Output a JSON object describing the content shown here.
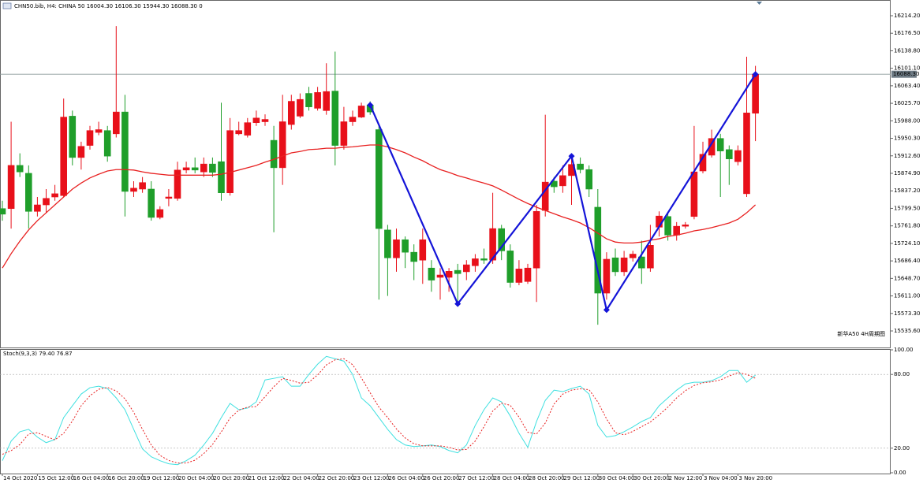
{
  "chart_data": [
    {
      "type": "candlestick",
      "title": "CHN50.bib, H4: CHINA 50 16004.30 16106.30 15944.30 16088.30 0",
      "annotation": "新华A50 4H周期图",
      "categories": [
        "14 Oct 2020",
        null,
        null,
        null,
        "15 Oct 12:00",
        null,
        null,
        null,
        "16 Oct 04:00",
        null,
        null,
        null,
        "16 Oct 20:00",
        null,
        null,
        null,
        "19 Oct 12:00",
        null,
        null,
        null,
        "20 Oct 04:00",
        null,
        null,
        null,
        "20 Oct 20:00",
        null,
        null,
        null,
        "21 Oct 12:00",
        null,
        null,
        null,
        "22 Oct 04:00",
        null,
        null,
        null,
        "22 Oct 20:00",
        null,
        null,
        null,
        "23 Oct 12:00",
        null,
        null,
        null,
        "26 Oct 04:00",
        null,
        null,
        null,
        "26 Oct 20:00",
        null,
        null,
        null,
        "27 Oct 12:00",
        null,
        null,
        null,
        "28 Oct 04:00",
        null,
        null,
        null,
        "28 Oct 20:00",
        null,
        null,
        null,
        "29 Oct 12:00",
        null,
        null,
        null,
        "30 Oct 04:00",
        null,
        null,
        null,
        "30 Oct 20:00",
        null,
        null,
        null,
        "2 Nov 12:00",
        null,
        null,
        null,
        "3 Nov 04:00",
        null,
        null,
        null,
        "3 Nov 20:00",
        null,
        null
      ],
      "open": [
        15799,
        15799,
        15892,
        15875,
        15793,
        15807,
        15824,
        15827,
        15998,
        15909,
        15935,
        15963,
        15967,
        15960,
        16007,
        15836,
        15841,
        15841,
        15780,
        15821,
        15821,
        15882,
        15887,
        15878,
        15895,
        15900,
        15833,
        15960,
        15957,
        15984,
        15986,
        15946,
        15887,
        15980,
        15998,
        16047,
        16015,
        16010,
        16052,
        15935,
        15986,
        15996,
        16022,
        15969,
        15753,
        15693,
        15732,
        15705,
        15688,
        15671,
        15651,
        15651,
        15666,
        15663,
        15676,
        15691,
        15688,
        15756,
        15708,
        15640,
        15642,
        15671,
        15795,
        15858,
        15848,
        15870,
        15895,
        15883,
        15802,
        15617,
        15693,
        15663,
        15693,
        15695,
        15671,
        15759,
        15782,
        15742,
        15761,
        15782,
        15880,
        15914,
        15950,
        15926,
        15900,
        15831,
        16004.3
      ],
      "high": [
        15816,
        15986,
        15918,
        15892,
        15824,
        15841,
        15850,
        16036,
        16010,
        15943,
        15977,
        15986,
        15977,
        16192,
        16044,
        15858,
        15867,
        15858,
        15804,
        15841,
        15900,
        15900,
        15909,
        15909,
        15909,
        16027,
        15994,
        15986,
        15994,
        16010,
        16002,
        15977,
        16044,
        16044,
        16047,
        16061,
        16061,
        16112,
        16137,
        16018,
        16010,
        16027,
        16030,
        15977,
        15764,
        15756,
        15739,
        15722,
        15756,
        15688,
        15671,
        15671,
        15680,
        15688,
        15701,
        15713,
        15833,
        15764,
        15722,
        15688,
        15680,
        15807,
        16001,
        15867,
        15892,
        15909,
        15909,
        15892,
        15841,
        15705,
        15713,
        15708,
        15708,
        15730,
        15764,
        15793,
        15790,
        15770,
        15770,
        15977,
        15943,
        15969,
        15960,
        15935,
        15935,
        16126,
        16106.3
      ],
      "low": [
        15773,
        15756,
        15867,
        15756,
        15782,
        15790,
        15816,
        15824,
        15892,
        15883,
        15926,
        15957,
        15900,
        15952,
        15782,
        15824,
        15833,
        15773,
        15776,
        15804,
        15816,
        15875,
        15875,
        15867,
        15867,
        15816,
        15827,
        15957,
        15952,
        15977,
        15977,
        15748,
        15850,
        15969,
        15994,
        16010,
        16010,
        16001,
        15892,
        15926,
        15977,
        15994,
        16001,
        15603,
        15611,
        15663,
        15671,
        15645,
        15637,
        15620,
        15603,
        15620,
        15594,
        15645,
        15663,
        15680,
        15680,
        15688,
        15629,
        15634,
        15637,
        15598,
        15782,
        15833,
        15833,
        15807,
        15875,
        15824,
        15549,
        15603,
        15654,
        15654,
        15685,
        15637,
        15663,
        15739,
        15730,
        15730,
        15756,
        15776,
        15875,
        15909,
        15824,
        15850,
        15892,
        15824,
        15944.3
      ],
      "close": [
        15787,
        15892,
        15878,
        15793,
        15807,
        15821,
        15831,
        15996,
        15909,
        15933,
        15967,
        15969,
        15912,
        16007,
        15836,
        15843,
        15855,
        15780,
        15797,
        15824,
        15882,
        15887,
        15882,
        15895,
        15877,
        15833,
        15967,
        15967,
        15984,
        15994,
        15991,
        15887,
        15986,
        16030,
        16034,
        16018,
        16049,
        16051,
        15935,
        15986,
        15996,
        16020,
        16007,
        15756,
        15693,
        15732,
        15705,
        15685,
        15732,
        15645,
        15656,
        15664,
        15659,
        15678,
        15691,
        15688,
        15756,
        15708,
        15640,
        15669,
        15671,
        15793,
        15856,
        15846,
        15870,
        15894,
        15883,
        15841,
        15617,
        15690,
        15663,
        15693,
        15701,
        15671,
        15720,
        15783,
        15742,
        15761,
        15764,
        15878,
        15916,
        15950,
        15923,
        15906,
        15924,
        16005,
        16088.3
      ],
      "up_color": "#e8101a",
      "down_color": "#1f9e2a",
      "ma": {
        "color": "#e82020",
        "values": [
          15671,
          15702,
          15729,
          15753,
          15773,
          15790,
          15807,
          15824,
          15841,
          15854,
          15865,
          15873,
          15880,
          15883,
          15883,
          15882,
          15878,
          15875,
          15873,
          15871,
          15871,
          15871,
          15871,
          15871,
          15871,
          15873,
          15877,
          15882,
          15887,
          15892,
          15899,
          15905,
          15912,
          15919,
          15922,
          15926,
          15927,
          15929,
          15929,
          15931,
          15932,
          15934,
          15936,
          15936,
          15932,
          15926,
          15919,
          15910,
          15902,
          15892,
          15883,
          15877,
          15870,
          15865,
          15859,
          15854,
          15848,
          15839,
          15829,
          15819,
          15810,
          15802,
          15795,
          15788,
          15781,
          15775,
          15768,
          15758,
          15746,
          15734,
          15727,
          15725,
          15725,
          15727,
          15731,
          15734,
          15739,
          15742,
          15746,
          15751,
          15754,
          15758,
          15763,
          15768,
          15776,
          15790,
          15807
        ]
      },
      "zigzag": {
        "color": "#1414d8",
        "x": [
          42,
          52,
          65,
          69,
          86
        ],
        "values": [
          16022,
          15594,
          15912,
          15581,
          16088.3
        ]
      },
      "last_price": {
        "value": 16088.3,
        "label": "16088.30"
      },
      "ylim": [
        15501.7,
        16244.7
      ],
      "yticks": [
        {
          "value": 16214.2,
          "label": "16214.20"
        },
        {
          "value": 16176.5,
          "label": "16176.50"
        },
        {
          "value": 16138.8,
          "label": "16138.80"
        },
        {
          "value": 16101.1,
          "label": "16101.10"
        },
        {
          "value": 16063.4,
          "label": "16063.40"
        },
        {
          "value": 16025.7,
          "label": "16025.70"
        },
        {
          "value": 15988,
          "label": "15988.00"
        },
        {
          "value": 15950.3,
          "label": "15950.30"
        },
        {
          "value": 15912.6,
          "label": "15912.60"
        },
        {
          "value": 15874.9,
          "label": "15874.90"
        },
        {
          "value": 15837.2,
          "label": "15837.20"
        },
        {
          "value": 15799.5,
          "label": "15799.50"
        },
        {
          "value": 15761.8,
          "label": "15761.80"
        },
        {
          "value": 15724.1,
          "label": "15724.10"
        },
        {
          "value": 15686.4,
          "label": "15686.40"
        },
        {
          "value": 15648.7,
          "label": "15648.70"
        },
        {
          "value": 15611,
          "label": "15611.00"
        },
        {
          "value": 15573.3,
          "label": "15573.30"
        },
        {
          "value": 15535.6,
          "label": "15535.60"
        }
      ]
    },
    {
      "type": "line",
      "title": "Stoch(9,3,3) 79.40 76.87",
      "series": [
        {
          "color": "#3fe0e0",
          "values": [
            9.8,
            25.8,
            33.4,
            35.3,
            29.0,
            24.5,
            27.0,
            44.9,
            54.5,
            64.0,
            69.2,
            70.4,
            68.5,
            60.9,
            51.3,
            35.3,
            19.4,
            13.0,
            9.8,
            7.3,
            6.6,
            9.8,
            14.3,
            22.6,
            32.1,
            44.9,
            56.4,
            51.3,
            52.6,
            57.7,
            75.5,
            76.8,
            78.1,
            70.4,
            70.4,
            80.0,
            88.3,
            94.7,
            92.8,
            90.8,
            80.0,
            60.9,
            54.5,
            44.9,
            35.3,
            27.0,
            22.6,
            21.3,
            21.9,
            22.6,
            21.3,
            18.1,
            16.2,
            22.6,
            38.5,
            51.3,
            60.9,
            57.7,
            46.2,
            32.1,
            20.7,
            41.7,
            58.9,
            67.2,
            66.0,
            68.5,
            70.4,
            64.0,
            38.5,
            29.0,
            30.2,
            33.4,
            37.3,
            41.7,
            44.9,
            54.5,
            60.9,
            67.2,
            72.3,
            73.6,
            73.6,
            74.9,
            78.1,
            83.2,
            83.2,
            73.6,
            79.4
          ]
        },
        {
          "color": "#e82020",
          "dashed": true,
          "values": [
            15,
            18,
            23.0,
            31.5,
            32.6,
            29.6,
            26.8,
            32.1,
            42.1,
            54.5,
            62.6,
            67.9,
            69.4,
            66.6,
            60.2,
            49.2,
            35.3,
            22.6,
            14.1,
            10.0,
            7.9,
            7.9,
            10.2,
            15.6,
            23.0,
            33.2,
            44.5,
            50.9,
            53.4,
            53.9,
            61.9,
            70.0,
            76.8,
            75.1,
            72.9,
            73.6,
            79.6,
            87.7,
            91.9,
            92.8,
            87.9,
            77.2,
            65.1,
            53.4,
            44.9,
            35.7,
            28.3,
            23.6,
            21.9,
            21.9,
            21.9,
            20.7,
            18.5,
            19.0,
            25.8,
            37.5,
            50.2,
            56.6,
            54.9,
            45.3,
            33.0,
            31.5,
            40.4,
            55.9,
            64.0,
            67.2,
            68.3,
            67.6,
            57.6,
            43.8,
            32.6,
            30.9,
            33.6,
            37.5,
            41.3,
            47.0,
            53.4,
            60.9,
            66.8,
            71.0,
            73.2,
            74.0,
            75.5,
            78.7,
            81.5,
            80.0,
            76.87
          ]
        }
      ],
      "levels": [
        80,
        20
      ],
      "ylim": [
        0,
        100
      ],
      "yticks": [
        {
          "value": 100,
          "label": "100.00"
        },
        {
          "value": 80,
          "label": "80.00"
        },
        {
          "value": 20,
          "label": "20.00"
        },
        {
          "value": 0,
          "label": "0.00"
        }
      ]
    }
  ]
}
